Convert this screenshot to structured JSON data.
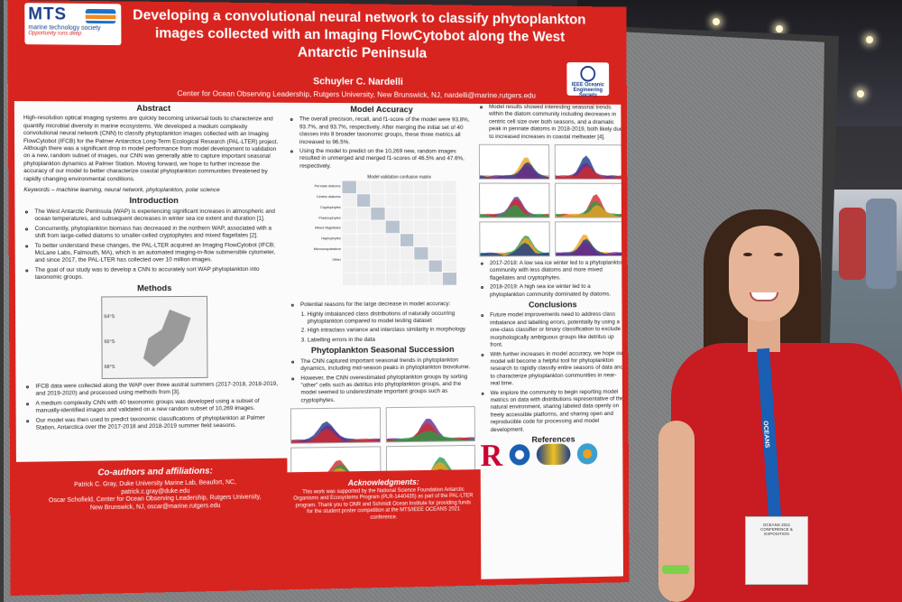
{
  "poster": {
    "logo_mts": "MTS",
    "logo_mts_sub": "marine technology society",
    "logo_mts_tag": "Opportunity runs deep",
    "title": "Developing a convolutional neural network to classify phytoplankton images collected with an Imaging FlowCytobot along the West Antarctic Peninsula",
    "logo_oes": "IEEE Oceanic Engineering Society",
    "author": "Schuyler C. Nardelli",
    "affiliation": "Center for Ocean Observing Leadership, Rutgers University, New Brunswick, NJ, nardelli@marine.rutgers.edu",
    "abstract": {
      "heading": "Abstract",
      "text": "High-resolution optical imaging systems are quickly becoming universal tools to characterize and quantify microbial diversity in marine ecosystems. We developed a medium complexity convolutional neural network (CNN) to classify phytoplankton images collected with an Imaging FlowCytobot (IFCB) for the Palmer Antarctica Long-Term Ecological Research (PAL-LTER) project. Although there was a significant drop in model performance from model development to validation on a new, random subset of images, our CNN was generally able to capture important seasonal phytoplankton dynamics at Palmer Station. Moving forward, we hope to further increase the accuracy of our model to better characterize coastal phytoplankton communities threatened by rapidly changing environmental conditions.",
      "keywords": "Keywords – machine learning, neural network, phytoplankton, polar science"
    },
    "introduction": {
      "heading": "Introduction",
      "items": [
        "The West Antarctic Peninsula (WAP) is experiencing significant increases in atmospheric and ocean temperatures, and subsequent decreases in winter sea ice extent and duration [1].",
        "Concurrently, phytoplankton biomass has decreased in the northern WAP, associated with a shift from large-celled diatoms to smaller-celled cryptophytes and mixed flagellates [2].",
        "To better understand these changes, the PAL-LTER acquired an Imaging FlowCytobot (IFCB; McLane Labs, Falmouth, MA), which is an automated imaging-in-flow submersible cytometer, and since 2017, the PAL-LTER has collected over 10 million images.",
        "The goal of our study was to develop a CNN to accurately sort WAP phytoplankton into taxonomic groups."
      ]
    },
    "methods": {
      "heading": "Methods",
      "map_labels": [
        "64°S",
        "66°S",
        "68°S"
      ],
      "items": [
        "IFCB data were collected along the WAP over three austral summers (2017-2018, 2018-2019, and 2019-2020) and processed using methods from [3].",
        "A medium complexity CNN with 40 taxonomic groups was developed using a subset of manually-identified images and validated on a new random subset of 10,269 images.",
        "Our model was then used to predict taxonomic classifications of phytoplankton at Palmer Station, Antarctica over the 2017-2018 and 2018-2019 summer field seasons."
      ]
    },
    "coauthors": {
      "heading": "Co-authors and affiliations:",
      "lines": [
        "Patrick C. Gray, Duke University Marine Lab, Beaufort, NC,",
        "patrick.c.gray@duke.edu",
        "Oscar Schofield, Center for Ocean Observing Leadership, Rutgers University,",
        "New Brunswick, NJ, oscar@marine.rutgers.edu"
      ]
    },
    "model_accuracy": {
      "heading": "Model Accuracy",
      "items": [
        "The overall precision, recall, and f1-score of the model were 93.8%, 93.7%, and 93.7%, respectively. After merging the initial set of 40 classes into 8 broader taxonomic groups, these three metrics all increased to 96.5%.",
        "Using the model to predict on the 10,269 new, random images resulted in unmerged and merged f1-scores of 46.5% and 47.6%, respectively."
      ],
      "matrix_title": "Model validation confusion matrix",
      "matrix_rows": [
        "Pennate diatoms",
        "Centric diatoms",
        "Cryptophytes",
        "Prasinophytes",
        "Mixed flagellates",
        "Haptophytes",
        "Microzooplankton",
        "Other"
      ],
      "reasons_intro": "Potential reasons for the large decrease in model accuracy:",
      "reasons": [
        "Highly imbalanced class distributions of naturally occurring phytoplankton compared to model testing dataset",
        "High intraclass variance and interclass similarity in morphology",
        "Labelling errors in the data"
      ]
    },
    "seasonal": {
      "heading": "Phytoplankton Seasonal Succession",
      "items": [
        "The CNN captured important seasonal trends in phytoplankton dynamics, including mid-season peaks in phytoplankton biovolume.",
        "However, the CNN overestimated phytoplankton groups by sorting \"other\" cells such as detritus into phytoplankton groups, and the model seemed to underestimate important groups such as cryptophytes."
      ]
    },
    "acknowledgments": {
      "heading": "Acknowledgments:",
      "text": "This work was supported by the National Science Foundation Antarctic Organisms and Ecosystems Program (PLR-1440435) as part of the PAL-LTER program. Thank you to ONR and Schmidt Ocean Institute for providing funds for the student poster competition at the MTS/IEEE OCEANS 2021 conference."
    },
    "results": {
      "intro": "Model results showed interesting seasonal trends within the diatom community including decreases in centric cell size over both seasons, and a dramatic peak in pennate diatoms in 2018-2019, both likely due to increased increases in coastal meltwater [4].",
      "items": [
        "2017-2018: A low sea ice winter led to a phytoplankton community with less diatoms and more mixed flagellates and cryptophytes.",
        "2018-2019: A high sea ice winter led to a phytoplankton community dominated by diatoms."
      ]
    },
    "conclusions": {
      "heading": "Conclusions",
      "items": [
        "Future model improvements need to address class imbalance and labelling errors, potentially by using a one-class classifier or binary classification to exclude morphologically ambiguous groups like detritus up front.",
        "With further increases in model accuracy, we hope our model will become a helpful tool for phytoplankton research to rapidly classify entire seasons of data and to characterize phytoplankton communities in near-real time.",
        "We implore the community to begin reporting model metrics on data with distributions representative of the natural environment, sharing labeled data openly on freely accessible platforms, and sharing open and reproducible code for processing and model development."
      ]
    },
    "references": {
      "heading": "References"
    },
    "logo_rutgers": "R"
  },
  "badge": {
    "line1": "OCEANS 2021 CONFERENCE & EXPOSITION"
  },
  "lanyard": {
    "text": "OCEANS"
  }
}
